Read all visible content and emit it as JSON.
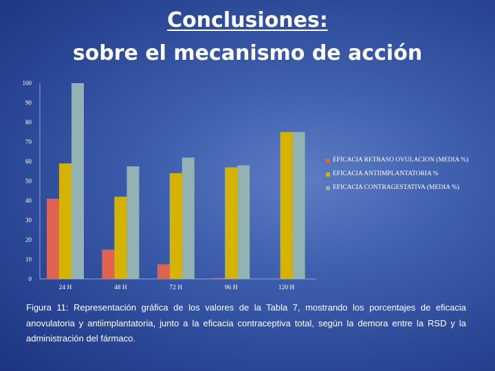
{
  "slide": {
    "title": "Conclusiones:",
    "subtitle": "sobre el mecanismo de acción",
    "caption": "Figura 11: Representación gráfica de los valores de la Tabla 7, mostrando los porcentajes de eficacia anovulatoria y antiimplantatoria, junto a la eficacia contraceptiva total,  según la demora entre la RSD y la administración del fármaco."
  },
  "chart_data": {
    "type": "bar",
    "categories": [
      "24 H",
      "48 H",
      "72 H",
      "96 H",
      "120 H"
    ],
    "series": [
      {
        "name": "EFICACIA RETRASO OVULACION (MEDIA %)",
        "color": "#e0634f",
        "values": [
          41,
          15,
          7.5,
          0.5,
          0
        ]
      },
      {
        "name": "EFICACIA ANTIIMPLANTATORIA %",
        "color": "#d4b400",
        "values": [
          59,
          42,
          54,
          57,
          75
        ]
      },
      {
        "name": "EFICACIA CONTRAGESTATIVA (MEDIA %)",
        "color": "#93b2b4",
        "values": [
          100,
          57.5,
          62,
          58,
          75
        ]
      }
    ],
    "ylim": [
      0,
      100
    ],
    "yticks": [
      "0",
      "10",
      "20",
      "30",
      "40",
      "50",
      "60",
      "70",
      "80",
      "90",
      "100"
    ],
    "grid": false,
    "legend": "right"
  }
}
